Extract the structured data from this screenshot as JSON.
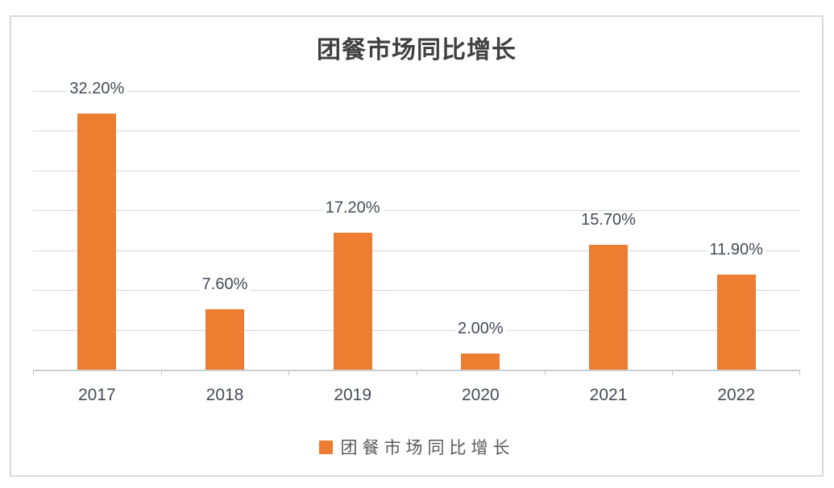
{
  "chart_data": {
    "type": "bar",
    "title": "团餐市场同比增长",
    "categories": [
      "2017",
      "2018",
      "2019",
      "2020",
      "2021",
      "2022"
    ],
    "values": [
      32.2,
      7.6,
      17.2,
      2.0,
      15.7,
      11.9
    ],
    "value_labels": [
      "32.20%",
      "7.60%",
      "17.20%",
      "2.00%",
      "15.70%",
      "11.90%"
    ],
    "xlabel": "",
    "ylabel": "",
    "ylim": [
      0,
      35
    ],
    "gridline_step": 5,
    "grid": "horizontal",
    "legend": {
      "position": "bottom",
      "entries": [
        "团餐市场同比增长"
      ]
    },
    "colors": {
      "bar": "#ED7D31",
      "gridline": "#D9D9D9",
      "axis": "#BFBFBF",
      "frame_border": "#D9D9D9",
      "title_text": "#404040",
      "label_text": "#454B57",
      "legend_text": "#595959"
    }
  }
}
